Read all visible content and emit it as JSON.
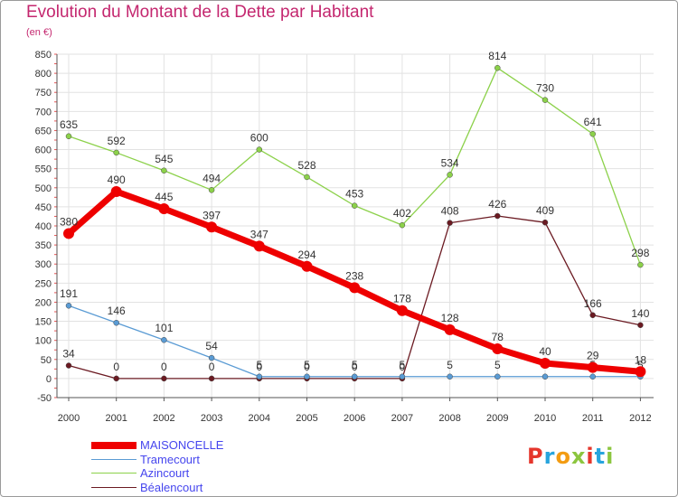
{
  "title": "Evolution du Montant de la Dette par Habitant",
  "unit_label": "(en €)",
  "logo": {
    "text": "Proxiti",
    "colors": [
      "#e5362c",
      "#27a4dd",
      "#f39c12",
      "#8cc63f",
      "#e5362c",
      "#27a4dd",
      "#8cc63f"
    ]
  },
  "chart_data": {
    "type": "line",
    "x": [
      "2000",
      "2001",
      "2002",
      "2003",
      "2004",
      "2005",
      "2006",
      "2007",
      "2008",
      "2009",
      "2010",
      "2011",
      "2012"
    ],
    "ylim": [
      -50,
      850
    ],
    "yticks": [
      -50,
      0,
      50,
      100,
      150,
      200,
      250,
      300,
      350,
      400,
      450,
      500,
      550,
      600,
      650,
      700,
      750,
      800,
      850
    ],
    "grid": true,
    "legend_position": "bottom-left",
    "series": [
      {
        "name": "Béalencourt",
        "color": "#6b1a22",
        "values": [
          34,
          0,
          0,
          0,
          0,
          0,
          0,
          0,
          408,
          426,
          409,
          166,
          140
        ]
      },
      {
        "name": "Azincourt",
        "color": "#8cd14a",
        "values": [
          635,
          592,
          545,
          494,
          600,
          528,
          453,
          402,
          534,
          814,
          730,
          641,
          298
        ]
      },
      {
        "name": "Tramecourt",
        "color": "#5a9bd4",
        "values": [
          191,
          146,
          101,
          54,
          5,
          5,
          5,
          5,
          5,
          5,
          5,
          5,
          5
        ]
      },
      {
        "name": "MAISONCELLE",
        "color": "#ee0000",
        "values": [
          380,
          490,
          445,
          397,
          347,
          294,
          238,
          178,
          128,
          78,
          40,
          29,
          18
        ]
      }
    ],
    "legend_order": [
      "MAISONCELLE",
      "Tramecourt",
      "Azincourt",
      "Béalencourt"
    ]
  }
}
